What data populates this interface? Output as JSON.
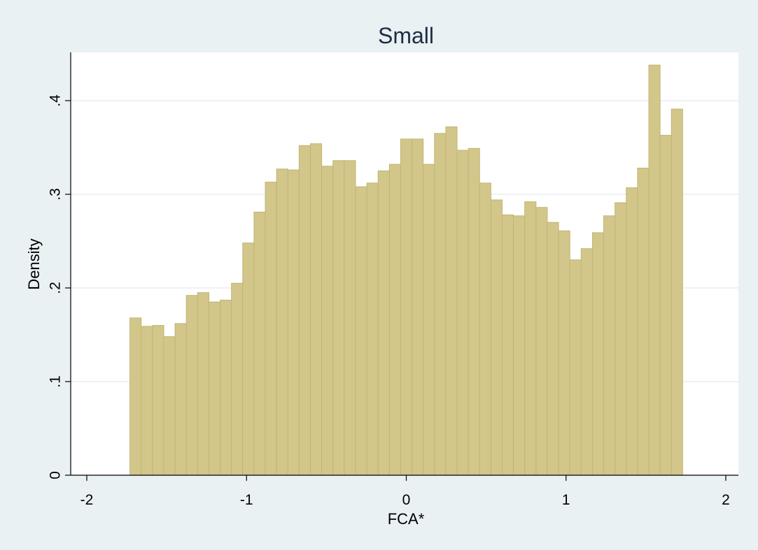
{
  "chart_data": {
    "type": "bar",
    "subtype": "histogram",
    "title": "Small",
    "xlabel": "FCA*",
    "ylabel": "Density",
    "xlim": [
      -2,
      2
    ],
    "ylim": [
      0,
      0.45
    ],
    "xticks": [
      -2,
      -1,
      0,
      1,
      2
    ],
    "xtick_labels": [
      "-2",
      "-1",
      "0",
      "1",
      "2"
    ],
    "yticks": [
      0,
      0.1,
      0.2,
      0.3,
      0.4
    ],
    "ytick_labels": [
      "0",
      ".1",
      ".2",
      ".3",
      ".4"
    ],
    "grid": true,
    "bin_start": -1.73,
    "bin_end": 1.73,
    "values": [
      0.168,
      0.159,
      0.16,
      0.148,
      0.162,
      0.192,
      0.195,
      0.185,
      0.187,
      0.205,
      0.248,
      0.281,
      0.313,
      0.327,
      0.326,
      0.352,
      0.354,
      0.33,
      0.336,
      0.336,
      0.308,
      0.312,
      0.325,
      0.332,
      0.359,
      0.359,
      0.332,
      0.365,
      0.372,
      0.347,
      0.349,
      0.312,
      0.294,
      0.278,
      0.277,
      0.292,
      0.286,
      0.27,
      0.261,
      0.23,
      0.242,
      0.259,
      0.277,
      0.291,
      0.307,
      0.328,
      0.438,
      0.363,
      0.391
    ],
    "colors": {
      "bar_fill": "#d2c68a",
      "bar_edge": "#c2b574",
      "plot_bg": "#ffffff",
      "page_bg": "#eaf1f3",
      "title": "#1e2d45"
    }
  }
}
